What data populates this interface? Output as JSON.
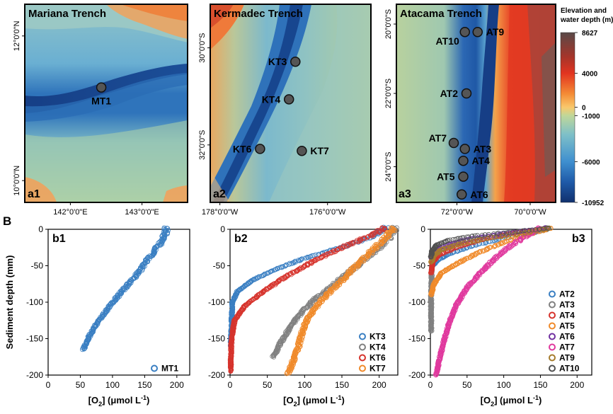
{
  "figure_tag_b": "B",
  "maps": [
    {
      "id": "a1",
      "title": "Mariana Trench",
      "panel_tag": "a1",
      "x_ticks": [
        {
          "label": "142°0'0\"E",
          "frac": 0.28
        },
        {
          "label": "143°0'0\"E",
          "frac": 0.72
        }
      ],
      "y_ticks": [
        {
          "label": "12°0'0\"N",
          "frac": 0.16
        },
        {
          "label": "10°0'0\"N",
          "frac": 0.89
        }
      ],
      "sites": [
        {
          "name": "MT1",
          "fx": 0.47,
          "fy": 0.42,
          "label_side": "below"
        }
      ]
    },
    {
      "id": "a2",
      "title": "Kermadec Trench",
      "panel_tag": "a2",
      "x_ticks": [
        {
          "label": "178°0'0\"W",
          "frac": 0.06
        },
        {
          "label": "176°0'0\"W",
          "frac": 0.73
        }
      ],
      "y_ticks": [
        {
          "label": "30°0'0\"S",
          "frac": 0.22
        },
        {
          "label": "32°0'0\"S",
          "frac": 0.71
        }
      ],
      "sites": [
        {
          "name": "KT3",
          "fx": 0.53,
          "fy": 0.29,
          "label_side": "left"
        },
        {
          "name": "KT4",
          "fx": 0.49,
          "fy": 0.48,
          "label_side": "left"
        },
        {
          "name": "KT6",
          "fx": 0.31,
          "fy": 0.73,
          "label_side": "left"
        },
        {
          "name": "KT7",
          "fx": 0.57,
          "fy": 0.74,
          "label_side": "right"
        }
      ]
    },
    {
      "id": "a3",
      "title": "Atacama Trench",
      "panel_tag": "a3",
      "x_ticks": [
        {
          "label": "72°0'0\"W",
          "frac": 0.38
        },
        {
          "label": "70°0'0\"W",
          "frac": 0.84
        }
      ],
      "y_ticks": [
        {
          "label": "20°0'0\"S",
          "frac": 0.1
        },
        {
          "label": "22°0'0\"S",
          "frac": 0.45
        },
        {
          "label": "24°0'0\"S",
          "frac": 0.82
        }
      ],
      "sites": [
        {
          "name": "AT10",
          "fx": 0.43,
          "fy": 0.14,
          "label_side": "below-left"
        },
        {
          "name": "AT9",
          "fx": 0.51,
          "fy": 0.14,
          "label_side": "right"
        },
        {
          "name": "AT2",
          "fx": 0.44,
          "fy": 0.45,
          "label_side": "left"
        },
        {
          "name": "AT7",
          "fx": 0.36,
          "fy": 0.7,
          "label_side": "left-up"
        },
        {
          "name": "AT3",
          "fx": 0.43,
          "fy": 0.73,
          "label_side": "right"
        },
        {
          "name": "AT4",
          "fx": 0.42,
          "fy": 0.79,
          "label_side": "right"
        },
        {
          "name": "AT5",
          "fx": 0.42,
          "fy": 0.87,
          "label_side": "left"
        },
        {
          "name": "AT6",
          "fx": 0.41,
          "fy": 0.96,
          "label_side": "right"
        }
      ]
    }
  ],
  "colorbar": {
    "title_line1": "Elevation and",
    "title_line2": "water depth (m)",
    "labels": [
      {
        "text": "8627",
        "frac": 0.0
      },
      {
        "text": "4000",
        "frac": 0.24
      },
      {
        "text": "0",
        "frac": 0.44
      },
      {
        "text": "-1000",
        "frac": 0.49
      },
      {
        "text": "-6000",
        "frac": 0.76
      },
      {
        "text": "-10952",
        "frac": 1.0
      }
    ],
    "colors": [
      "#5a4a48",
      "#b2342a",
      "#e63320",
      "#f48b35",
      "#f9c86c",
      "#bfd79a",
      "#7ec0c8",
      "#3f8fcf",
      "#1f5aa8",
      "#10306e"
    ]
  },
  "chart_data": [
    {
      "type": "scatter",
      "panel": "b1",
      "xlabel": "[O2] (μmol L-1)",
      "ylabel": "Sediment depth (mm)",
      "xlim": [
        0,
        220
      ],
      "ylim": [
        -200,
        0
      ],
      "x_ticks": [
        0,
        50,
        100,
        150,
        200
      ],
      "y_ticks": [
        0,
        -50,
        -100,
        -150,
        -200
      ],
      "legend_position": "bottom-right",
      "series": [
        {
          "name": "MT1",
          "color": "#3a7fc2",
          "profile": [
            [
              184,
              2
            ],
            [
              182,
              -5
            ],
            [
              178,
              -15
            ],
            [
              160,
              -35
            ],
            [
              140,
              -60
            ],
            [
              110,
              -90
            ],
            [
              90,
              -112
            ],
            [
              75,
              -130
            ],
            [
              62,
              -150
            ],
            [
              57,
              -160
            ],
            [
              55,
              -165
            ]
          ]
        }
      ]
    },
    {
      "type": "scatter",
      "panel": "b2",
      "xlabel": "[O2] (μmol L-1)",
      "ylabel": "",
      "xlim": [
        0,
        225
      ],
      "ylim": [
        -200,
        0
      ],
      "x_ticks": [
        0,
        50,
        100,
        150,
        200
      ],
      "y_ticks": [
        0,
        -50,
        -100,
        -150,
        -200
      ],
      "legend_position": "bottom-right",
      "series": [
        {
          "name": "KT3",
          "color": "#3a7fc2",
          "profile": [
            [
              210,
              3
            ],
            [
              190,
              -10
            ],
            [
              150,
              -25
            ],
            [
              100,
              -40
            ],
            [
              60,
              -55
            ],
            [
              30,
              -70
            ],
            [
              10,
              -85
            ],
            [
              3,
              -100
            ],
            [
              2,
              -130
            ],
            [
              1,
              -160
            ]
          ]
        },
        {
          "name": "KT4",
          "color": "#808080",
          "profile": [
            [
              222,
              3
            ],
            [
              215,
              -10
            ],
            [
              200,
              -25
            ],
            [
              170,
              -50
            ],
            [
              140,
              -75
            ],
            [
              115,
              -95
            ],
            [
              95,
              -115
            ],
            [
              80,
              -135
            ],
            [
              68,
              -155
            ],
            [
              58,
              -175
            ]
          ]
        },
        {
          "name": "KT6",
          "color": "#d6332c",
          "profile": [
            [
              208,
              2
            ],
            [
              190,
              -8
            ],
            [
              150,
              -25
            ],
            [
              110,
              -45
            ],
            [
              75,
              -65
            ],
            [
              45,
              -85
            ],
            [
              20,
              -105
            ],
            [
              6,
              -125
            ],
            [
              2,
              -150
            ],
            [
              1,
              -180
            ],
            [
              1,
              -195
            ]
          ]
        },
        {
          "name": "KT7",
          "color": "#f08a2a",
          "profile": [
            [
              220,
              2
            ],
            [
              210,
              -10
            ],
            [
              195,
              -25
            ],
            [
              175,
              -45
            ],
            [
              150,
              -70
            ],
            [
              125,
              -95
            ],
            [
              105,
              -120
            ],
            [
              97,
              -140
            ],
            [
              92,
              -160
            ],
            [
              85,
              -180
            ],
            [
              78,
              -198
            ]
          ]
        }
      ]
    },
    {
      "type": "scatter",
      "panel": "b3",
      "xlabel": "[O2] (μmol L-1)",
      "ylabel": "",
      "xlim": [
        0,
        220
      ],
      "ylim": [
        -200,
        0
      ],
      "x_ticks": [
        0,
        50,
        100,
        150,
        200
      ],
      "y_ticks": [
        0,
        -50,
        -100,
        -150,
        -200
      ],
      "legend_position": "right",
      "series": [
        {
          "name": "AT2",
          "color": "#3a7fc2",
          "profile": [
            [
              165,
              2
            ],
            [
              140,
              -5
            ],
            [
              100,
              -12
            ],
            [
              60,
              -22
            ],
            [
              30,
              -32
            ],
            [
              10,
              -42
            ],
            [
              3,
              -50
            ]
          ]
        },
        {
          "name": "AT3",
          "color": "#808080",
          "profile": [
            [
              162,
              2
            ],
            [
              120,
              -5
            ],
            [
              80,
              -10
            ],
            [
              40,
              -18
            ],
            [
              15,
              -28
            ],
            [
              5,
              -38
            ],
            [
              2,
              -50
            ],
            [
              1,
              -90
            ],
            [
              1,
              -140
            ]
          ]
        },
        {
          "name": "AT4",
          "color": "#d6332c",
          "profile": [
            [
              160,
              2
            ],
            [
              110,
              -6
            ],
            [
              70,
              -14
            ],
            [
              35,
              -25
            ],
            [
              12,
              -35
            ],
            [
              3,
              -45
            ],
            [
              1,
              -60
            ]
          ]
        },
        {
          "name": "AT5",
          "color": "#f08a2a",
          "profile": [
            [
              165,
              2
            ],
            [
              130,
              -8
            ],
            [
              100,
              -18
            ],
            [
              70,
              -30
            ],
            [
              40,
              -45
            ],
            [
              15,
              -60
            ],
            [
              5,
              -75
            ],
            [
              1,
              -90
            ]
          ]
        },
        {
          "name": "AT6",
          "color": "#7030a0",
          "profile": [
            [
              160,
              2
            ],
            [
              100,
              -6
            ],
            [
              50,
              -14
            ],
            [
              15,
              -24
            ],
            [
              4,
              -32
            ],
            [
              1,
              -40
            ]
          ]
        },
        {
          "name": "AT7",
          "color": "#e0399e",
          "profile": [
            [
              150,
              2
            ],
            [
              130,
              -10
            ],
            [
              110,
              -22
            ],
            [
              90,
              -38
            ],
            [
              70,
              -58
            ],
            [
              50,
              -80
            ],
            [
              35,
              -105
            ],
            [
              25,
              -130
            ],
            [
              18,
              -155
            ],
            [
              12,
              -180
            ],
            [
              8,
              -200
            ]
          ]
        },
        {
          "name": "AT9",
          "color": "#a67c2d",
          "profile": [
            [
              165,
              2
            ],
            [
              130,
              -5
            ],
            [
              80,
              -12
            ],
            [
              40,
              -20
            ],
            [
              15,
              -28
            ],
            [
              5,
              -36
            ],
            [
              1,
              -45
            ]
          ]
        },
        {
          "name": "AT10",
          "color": "#505050",
          "profile": [
            [
              162,
              2
            ],
            [
              110,
              -4
            ],
            [
              60,
              -9
            ],
            [
              25,
              -15
            ],
            [
              8,
              -22
            ],
            [
              2,
              -30
            ],
            [
              1,
              -38
            ]
          ]
        }
      ]
    }
  ]
}
